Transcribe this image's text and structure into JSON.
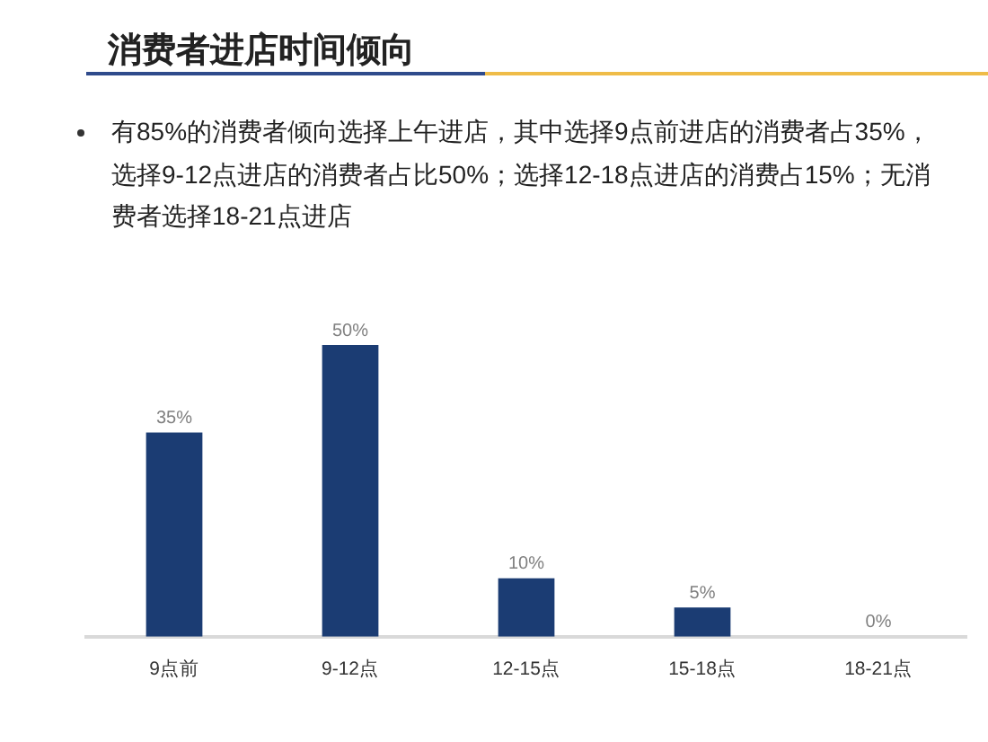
{
  "chart_data": {
    "type": "bar",
    "title": "消费者进店时间倾向",
    "subtitle": "有85%的消费者倾向选择上午进店，其中选择9点前进店的消费者占35%，选择9-12点进店的消费者占比50%；选择12-18点进店的消费占15%；无消费者选择18-21点进店",
    "categories": [
      "9点前",
      "9-12点",
      "12-15点",
      "15-18点",
      "18-21点"
    ],
    "values": [
      35,
      50,
      10,
      5,
      0
    ],
    "value_labels": [
      "35%",
      "50%",
      "10%",
      "5%",
      "0%"
    ],
    "color": "#1b3c73",
    "tick_labels": "x"
  }
}
